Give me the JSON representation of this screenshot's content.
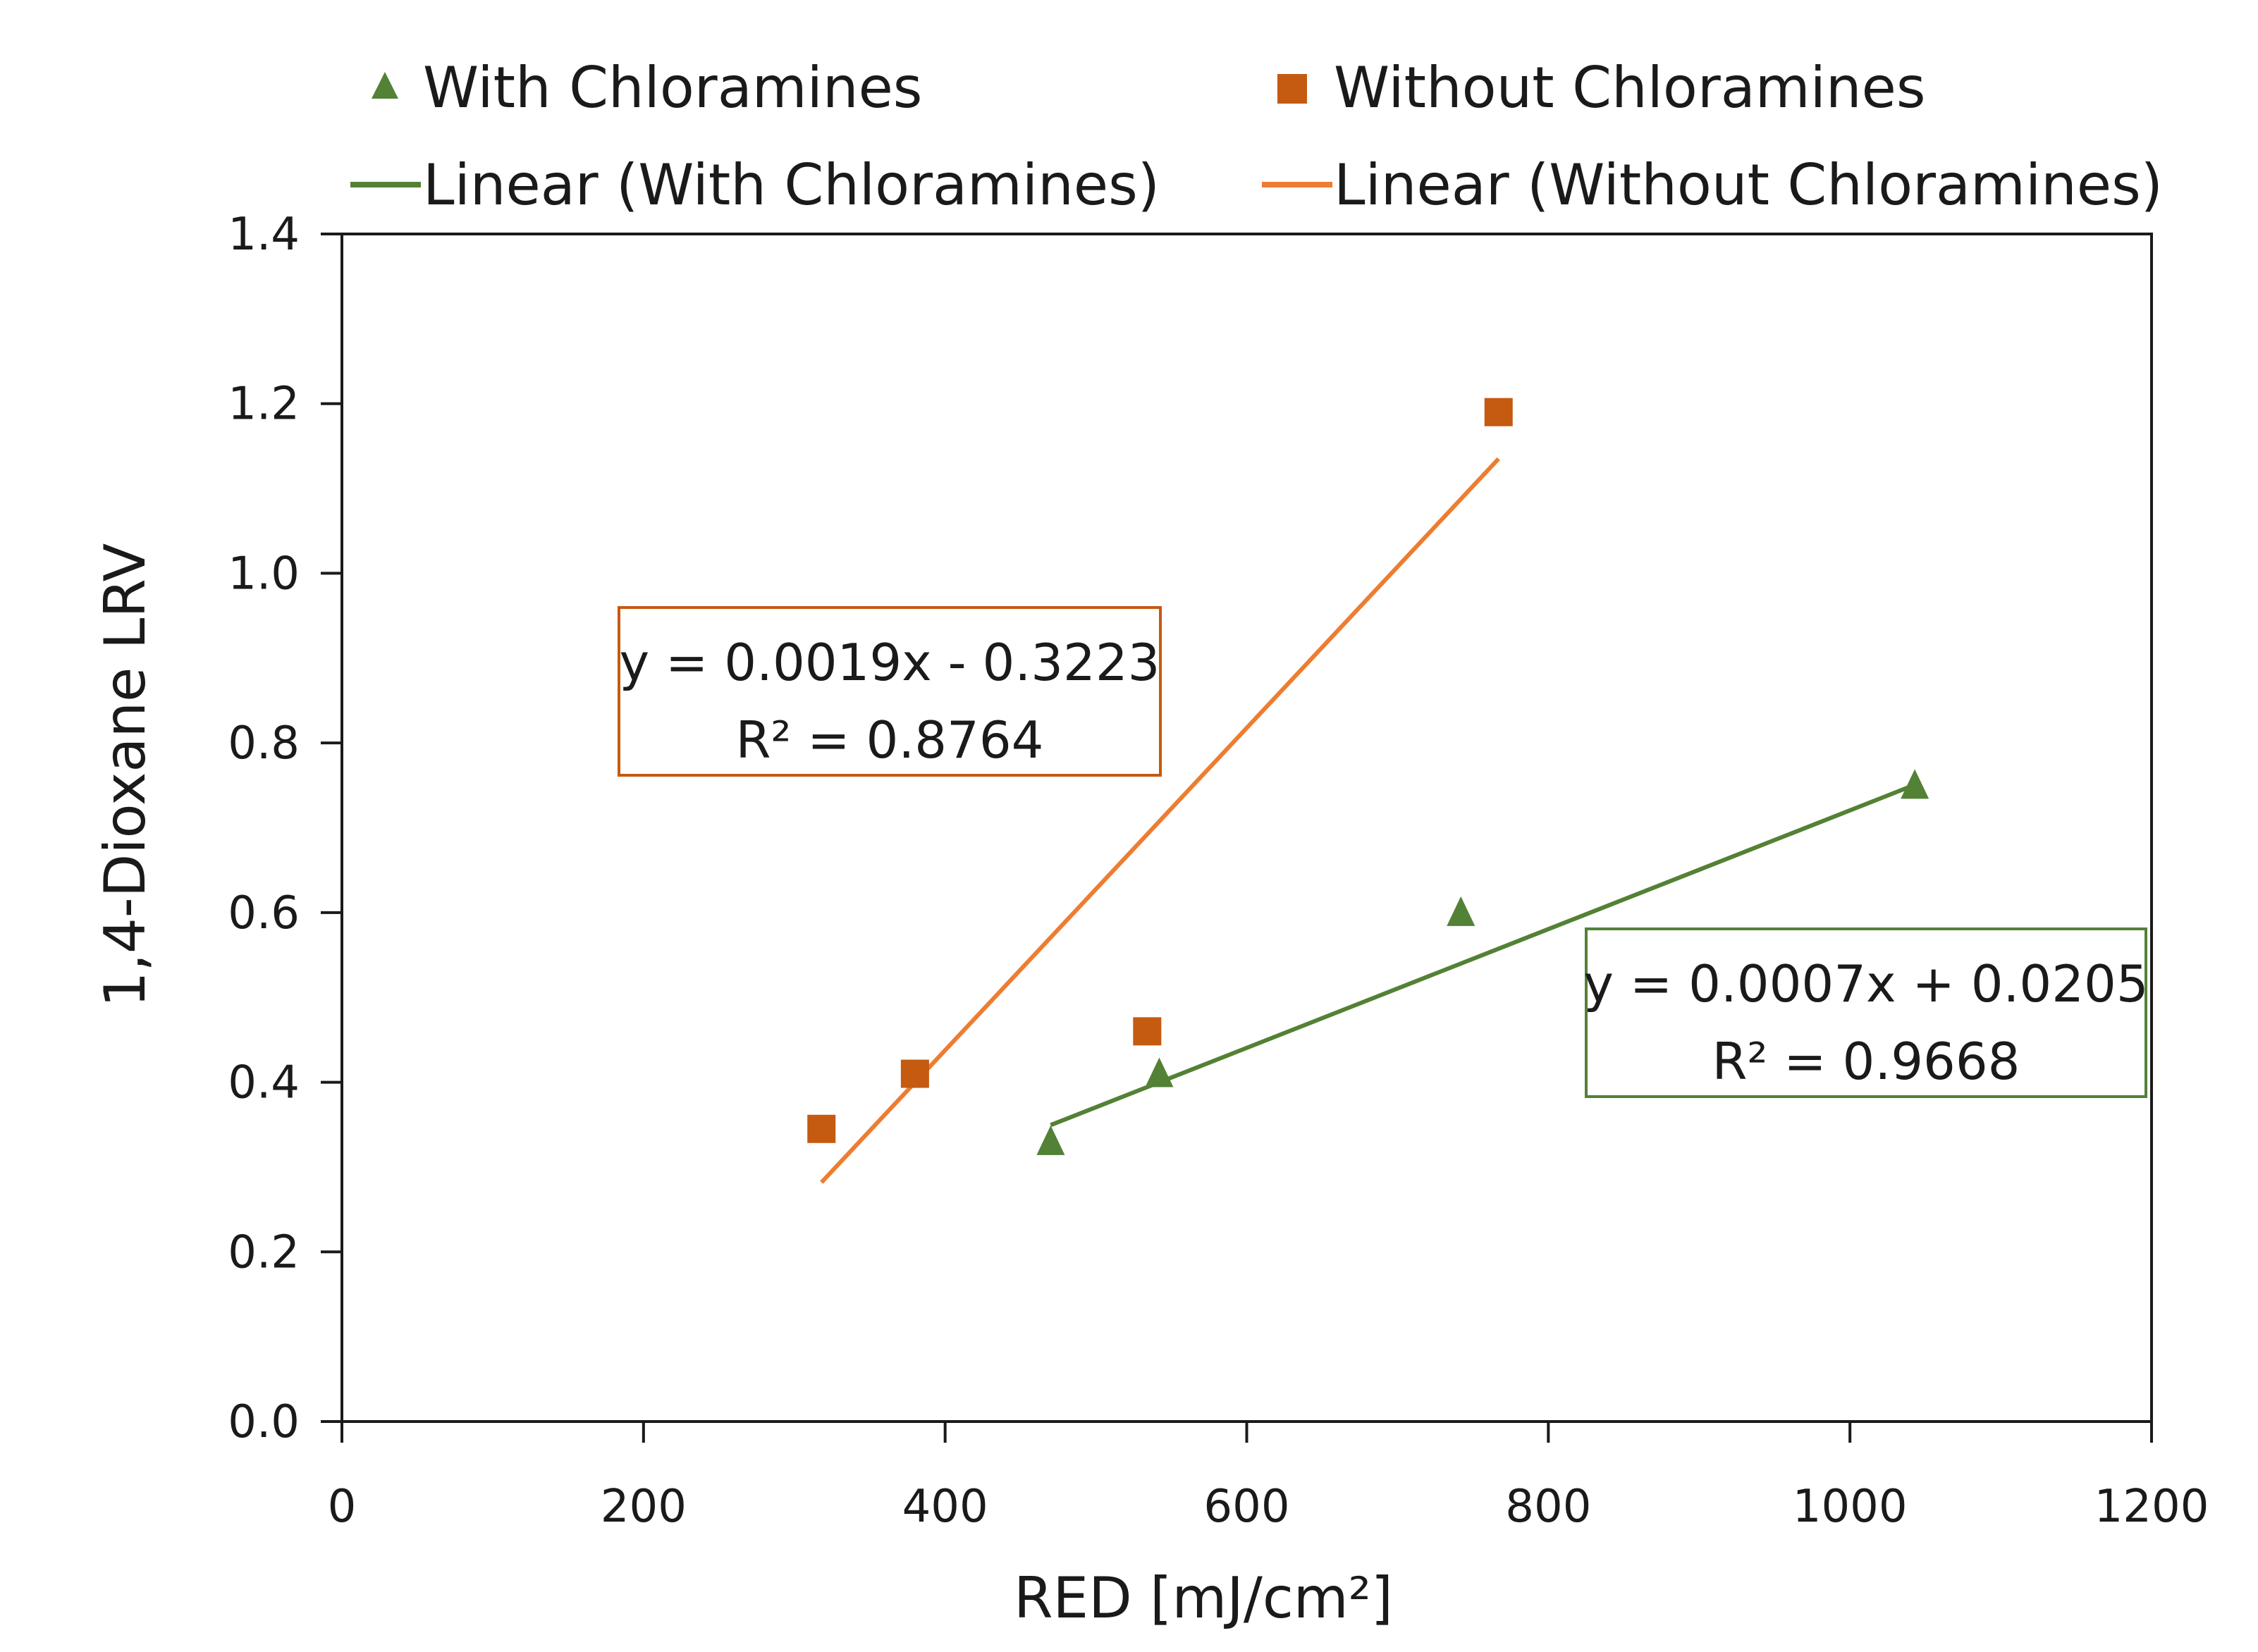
{
  "chart_data": {
    "type": "scatter",
    "xlabel": "RED [mJ/cm²]",
    "ylabel": "1,4-Dioxane LRV",
    "xlim": [
      0,
      1200
    ],
    "ylim": [
      0,
      1.4
    ],
    "x_ticks": [
      "0",
      "200",
      "400",
      "600",
      "800",
      "1000",
      "1200"
    ],
    "y_ticks": [
      "0.0",
      "0.2",
      "0.4",
      "0.6",
      "0.8",
      "1.0",
      "1.2",
      "1.4"
    ],
    "grid": false,
    "legend_position": "top",
    "series": [
      {
        "name": "With Chloramines",
        "marker": "triangle",
        "color": "#538135",
        "points": [
          {
            "x": 470,
            "y": 0.33
          },
          {
            "x": 542,
            "y": 0.41
          },
          {
            "x": 742,
            "y": 0.6
          },
          {
            "x": 1043,
            "y": 0.75
          }
        ]
      },
      {
        "name": "Without Chloramines",
        "marker": "square",
        "color": "#C55A11",
        "points": [
          {
            "x": 318,
            "y": 0.345
          },
          {
            "x": 380,
            "y": 0.41
          },
          {
            "x": 534,
            "y": 0.46
          },
          {
            "x": 767,
            "y": 1.19
          }
        ]
      }
    ],
    "trendlines": [
      {
        "name": "Linear (With Chloramines)",
        "color": "#538135",
        "slope": 0.0007,
        "intercept": 0.0205,
        "x_range": [
          470,
          1043
        ],
        "equation": "y = 0.0007x + 0.0205",
        "r2": "R² = 0.9668"
      },
      {
        "name": "Linear (Without Chloramines)",
        "color": "#ED7D31",
        "slope": 0.0019,
        "intercept": -0.3223,
        "x_range": [
          318,
          767
        ],
        "equation": "y = 0.0019x - 0.3223",
        "r2": "R² = 0.8764"
      }
    ]
  }
}
